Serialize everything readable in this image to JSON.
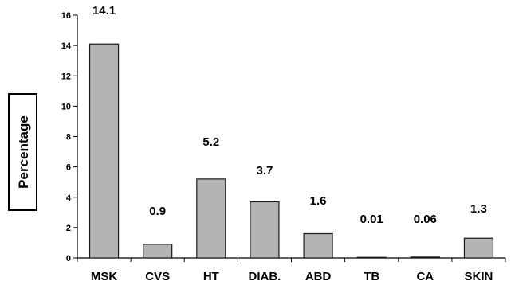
{
  "chart_data": {
    "type": "bar",
    "title": "",
    "xlabel": "",
    "ylabel": "Percentage",
    "categories": [
      "MSK",
      "CVS",
      "HT",
      "DIAB.",
      "ABD",
      "TB",
      "CA",
      "SKIN"
    ],
    "values": [
      14.1,
      0.9,
      5.2,
      3.7,
      1.6,
      0.01,
      0.06,
      1.3
    ],
    "data_labels": [
      "14.1",
      "0.9",
      "5.2",
      "3.7",
      "1.6",
      "0.01",
      "0.06",
      "1.3"
    ],
    "ylim": [
      0,
      16
    ],
    "yticks": [
      0,
      2,
      4,
      6,
      8,
      10,
      12,
      14,
      16
    ],
    "grid": false,
    "legend": "none",
    "bar_color": "#b4b4b4"
  }
}
